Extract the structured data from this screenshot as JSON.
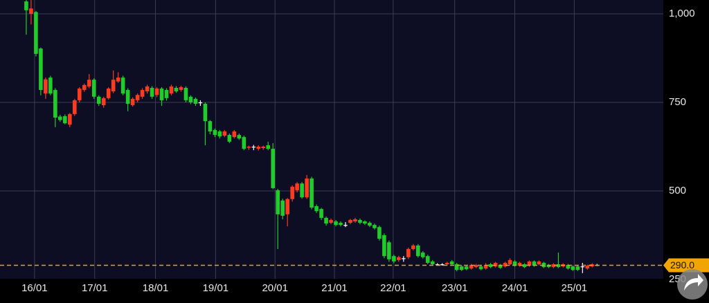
{
  "chart_data": {
    "type": "candlestick",
    "up_color": "#ff3b1f",
    "down_color": "#1fcc2a",
    "flat_color": "#ffffff",
    "grid": true,
    "ylim": [
      252,
      1039
    ],
    "yticks": [
      {
        "value": 1000,
        "label": "1,000"
      },
      750,
      500,
      250
    ],
    "xlim": [
      -5.43,
      131.7
    ],
    "xticks": [
      {
        "value": 1.71,
        "label": "16/01"
      },
      {
        "value": 14.14,
        "label": "17/01"
      },
      {
        "value": 26.71,
        "label": "18/01"
      },
      {
        "value": 39.14,
        "label": "19/01"
      },
      {
        "value": 51.43,
        "label": "20/01"
      },
      {
        "value": 63.71,
        "label": "21/01"
      },
      {
        "value": 75.86,
        "label": "22/01"
      },
      {
        "value": 88.57,
        "label": "23/01"
      },
      {
        "value": 101,
        "label": "24/01"
      },
      {
        "value": 113.29,
        "label": "25/01"
      }
    ],
    "current_price": {
      "value": 290,
      "label": "290.0",
      "color": "#f0a500"
    },
    "candles": [
      [
        1035,
        1039,
        941,
        1010
      ],
      [
        1000,
        1039,
        970,
        1015
      ],
      [
        1005,
        1008,
        880,
        887
      ],
      [
        902,
        905,
        770,
        785
      ],
      [
        775,
        820,
        760,
        815
      ],
      [
        820,
        825,
        770,
        775
      ],
      [
        785,
        790,
        680,
        707
      ],
      [
        710,
        715,
        695,
        700
      ],
      [
        711,
        716,
        688,
        691
      ],
      [
        687,
        720,
        680,
        717
      ],
      [
        717,
        760,
        712,
        756
      ],
      [
        756,
        793,
        750,
        789
      ],
      [
        785,
        803,
        780,
        799
      ],
      [
        795,
        830,
        790,
        814
      ],
      [
        814,
        818,
        760,
        766
      ],
      [
        766,
        770,
        740,
        746
      ],
      [
        742,
        766,
        735,
        762
      ],
      [
        762,
        793,
        758,
        789
      ],
      [
        781,
        840,
        776,
        814
      ],
      [
        809,
        835,
        805,
        820
      ],
      [
        820,
        825,
        770,
        775
      ],
      [
        785,
        790,
        725,
        746
      ],
      [
        742,
        764,
        738,
        760
      ],
      [
        756,
        775,
        750,
        771
      ],
      [
        766,
        790,
        760,
        785
      ],
      [
        781,
        800,
        775,
        795
      ],
      [
        791,
        796,
        760,
        766
      ],
      [
        771,
        793,
        765,
        789
      ],
      [
        789,
        793,
        740,
        756
      ],
      [
        785,
        790,
        755,
        762
      ],
      [
        775,
        800,
        770,
        795
      ],
      [
        791,
        796,
        777,
        781
      ],
      [
        785,
        797,
        780,
        793
      ],
      [
        791,
        795,
        750,
        756
      ],
      [
        766,
        770,
        745,
        750
      ],
      [
        760,
        764,
        740,
        746
      ],
      [
        750,
        756,
        740,
        750
      ],
      [
        746,
        750,
        629,
        697
      ],
      [
        697,
        700,
        660,
        668
      ],
      [
        672,
        676,
        652,
        658
      ],
      [
        668,
        672,
        648,
        654
      ],
      [
        656,
        672,
        652,
        668
      ],
      [
        658,
        662,
        635,
        639
      ],
      [
        652,
        672,
        648,
        668
      ],
      [
        658,
        662,
        644,
        648
      ],
      [
        652,
        656,
        615,
        619
      ],
      [
        622,
        628,
        616,
        625
      ],
      [
        625,
        630,
        615,
        625
      ],
      [
        619,
        629,
        614,
        625
      ],
      [
        621,
        628,
        616,
        625
      ],
      [
        629,
        639,
        615,
        619
      ],
      [
        619,
        635,
        505,
        508
      ],
      [
        502,
        506,
        336,
        434
      ],
      [
        473,
        478,
        420,
        430
      ],
      [
        434,
        480,
        400,
        477
      ],
      [
        477,
        516,
        470,
        512
      ],
      [
        502,
        525,
        496,
        521
      ],
      [
        521,
        525,
        478,
        482
      ],
      [
        482,
        545,
        478,
        535
      ],
      [
        535,
        540,
        448,
        453
      ],
      [
        457,
        462,
        438,
        443
      ],
      [
        449,
        452,
        418,
        424
      ],
      [
        424,
        428,
        402,
        408
      ],
      [
        410,
        422,
        406,
        418
      ],
      [
        414,
        418,
        400,
        404
      ],
      [
        410,
        414,
        400,
        404
      ],
      [
        404,
        412,
        398,
        404
      ],
      [
        410,
        421,
        406,
        418
      ],
      [
        414,
        424,
        410,
        420
      ],
      [
        418,
        422,
        406,
        410
      ],
      [
        414,
        417,
        404,
        408
      ],
      [
        410,
        414,
        398,
        402
      ],
      [
        404,
        408,
        391,
        395
      ],
      [
        398,
        402,
        360,
        365
      ],
      [
        375,
        380,
        310,
        316
      ],
      [
        355,
        360,
        300,
        307
      ],
      [
        316,
        320,
        296,
        301
      ],
      [
        305,
        317,
        300,
        313
      ],
      [
        310,
        316,
        300,
        310
      ],
      [
        313,
        340,
        308,
        336
      ],
      [
        336,
        350,
        332,
        346
      ],
      [
        346,
        350,
        312,
        316
      ],
      [
        326,
        330,
        309,
        313
      ],
      [
        316,
        320,
        293,
        297
      ],
      [
        301,
        305,
        289,
        293
      ],
      [
        293,
        296,
        289,
        293
      ],
      [
        293,
        296,
        289,
        293
      ],
      [
        293,
        300,
        289,
        297
      ],
      [
        301,
        305,
        289,
        293
      ],
      [
        293,
        297,
        273,
        277
      ],
      [
        287,
        291,
        274,
        277
      ],
      [
        287,
        290,
        276,
        279
      ],
      [
        281,
        294,
        278,
        291
      ],
      [
        285,
        294,
        282,
        291
      ],
      [
        287,
        291,
        276,
        279
      ],
      [
        281,
        296,
        278,
        291
      ],
      [
        293,
        297,
        282,
        285
      ],
      [
        287,
        300,
        284,
        297
      ],
      [
        291,
        294,
        280,
        283
      ],
      [
        287,
        300,
        284,
        297
      ],
      [
        293,
        310,
        290,
        305
      ],
      [
        301,
        305,
        286,
        289
      ],
      [
        289,
        300,
        286,
        297
      ],
      [
        293,
        296,
        282,
        285
      ],
      [
        289,
        304,
        286,
        301
      ],
      [
        301,
        304,
        286,
        289
      ],
      [
        293,
        304,
        290,
        301
      ],
      [
        297,
        300,
        282,
        285
      ],
      [
        291,
        294,
        282,
        285
      ],
      [
        285,
        296,
        282,
        293
      ],
      [
        293,
        326,
        282,
        285
      ],
      [
        287,
        296,
        284,
        293
      ],
      [
        291,
        294,
        278,
        281
      ],
      [
        287,
        290,
        274,
        277
      ],
      [
        287,
        290,
        274,
        277
      ],
      [
        287,
        297,
        268,
        287
      ],
      [
        281,
        292,
        278,
        289
      ],
      [
        287,
        296,
        284,
        293
      ],
      [
        291,
        294,
        288,
        291
      ]
    ]
  }
}
